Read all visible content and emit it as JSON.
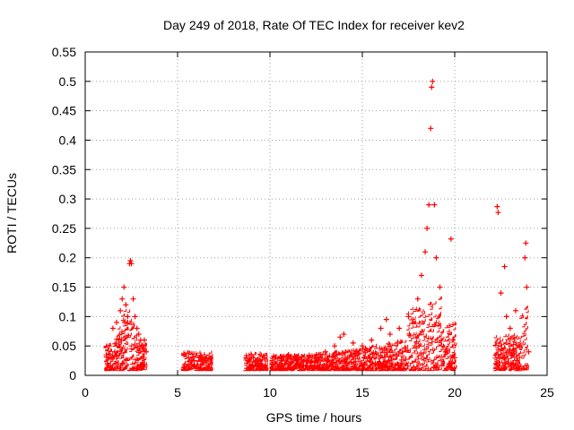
{
  "chart_data": {
    "type": "scatter",
    "title": "Day 249 of 2018, Rate Of TEC Index for receiver kev2",
    "xlabel": "GPS time / hours",
    "ylabel": "ROTI / TECUs",
    "xlim": [
      0,
      25
    ],
    "ylim": [
      0,
      0.55
    ],
    "x_ticks": [
      0,
      5,
      10,
      15,
      20,
      25
    ],
    "x_tick_labels": [
      "0",
      "5",
      "10",
      "15",
      "20",
      "25"
    ],
    "y_ticks": [
      0,
      0.05,
      0.1,
      0.15,
      0.2,
      0.25,
      0.3,
      0.35,
      0.4,
      0.45,
      0.5,
      0.55
    ],
    "y_tick_labels": [
      "0",
      "0.05",
      "0.1",
      "0.15",
      "0.2",
      "0.25",
      "0.3",
      "0.35",
      "0.4",
      "0.45",
      "0.5",
      "0.55"
    ],
    "grid": true,
    "marker": "+",
    "marker_color": "#ff0000",
    "series": [
      {
        "name": "ROTI",
        "points": [
          [
            1.2,
            0.02
          ],
          [
            1.3,
            0.05
          ],
          [
            1.4,
            0.03
          ],
          [
            1.5,
            0.08
          ],
          [
            1.6,
            0.04
          ],
          [
            1.7,
            0.09
          ],
          [
            1.8,
            0.06
          ],
          [
            1.9,
            0.11
          ],
          [
            2.0,
            0.13
          ],
          [
            2.1,
            0.15
          ],
          [
            2.2,
            0.12
          ],
          [
            2.3,
            0.1
          ],
          [
            2.4,
            0.19
          ],
          [
            2.45,
            0.195
          ],
          [
            2.5,
            0.19
          ],
          [
            2.6,
            0.13
          ],
          [
            2.7,
            0.1
          ],
          [
            2.8,
            0.08
          ],
          [
            2.9,
            0.07
          ],
          [
            3.0,
            0.06
          ],
          [
            3.1,
            0.05
          ],
          [
            3.2,
            0.06
          ],
          [
            3.3,
            0.04
          ],
          [
            5.4,
            0.035
          ],
          [
            5.6,
            0.03
          ],
          [
            5.9,
            0.025
          ],
          [
            6.2,
            0.03
          ],
          [
            6.5,
            0.025
          ],
          [
            6.8,
            0.03
          ],
          [
            8.8,
            0.025
          ],
          [
            9.1,
            0.03
          ],
          [
            9.4,
            0.025
          ],
          [
            9.7,
            0.03
          ],
          [
            10.3,
            0.03
          ],
          [
            10.6,
            0.025
          ],
          [
            11.0,
            0.035
          ],
          [
            11.5,
            0.03
          ],
          [
            12.0,
            0.025
          ],
          [
            12.5,
            0.03
          ],
          [
            13.0,
            0.04
          ],
          [
            13.5,
            0.05
          ],
          [
            13.8,
            0.065
          ],
          [
            14.0,
            0.07
          ],
          [
            14.5,
            0.055
          ],
          [
            15.0,
            0.05
          ],
          [
            15.5,
            0.06
          ],
          [
            16.0,
            0.08
          ],
          [
            16.3,
            0.095
          ],
          [
            16.5,
            0.07
          ],
          [
            17.0,
            0.08
          ],
          [
            17.5,
            0.1
          ],
          [
            18.0,
            0.13
          ],
          [
            18.2,
            0.17
          ],
          [
            18.4,
            0.21
          ],
          [
            18.5,
            0.25
          ],
          [
            18.6,
            0.29
          ],
          [
            18.7,
            0.42
          ],
          [
            18.75,
            0.49
          ],
          [
            18.8,
            0.5
          ],
          [
            18.9,
            0.29
          ],
          [
            19.0,
            0.2
          ],
          [
            19.2,
            0.15
          ],
          [
            19.5,
            0.04
          ],
          [
            19.8,
            0.232
          ],
          [
            19.9,
            0.06
          ],
          [
            20.0,
            0.03
          ],
          [
            22.3,
            0.287
          ],
          [
            22.35,
            0.277
          ],
          [
            22.5,
            0.14
          ],
          [
            22.7,
            0.185
          ],
          [
            22.8,
            0.1
          ],
          [
            23.0,
            0.08
          ],
          [
            23.3,
            0.11
          ],
          [
            23.5,
            0.05
          ],
          [
            23.8,
            0.2
          ],
          [
            23.85,
            0.225
          ],
          [
            23.9,
            0.15
          ],
          [
            24.0,
            0.04
          ]
        ]
      }
    ]
  }
}
